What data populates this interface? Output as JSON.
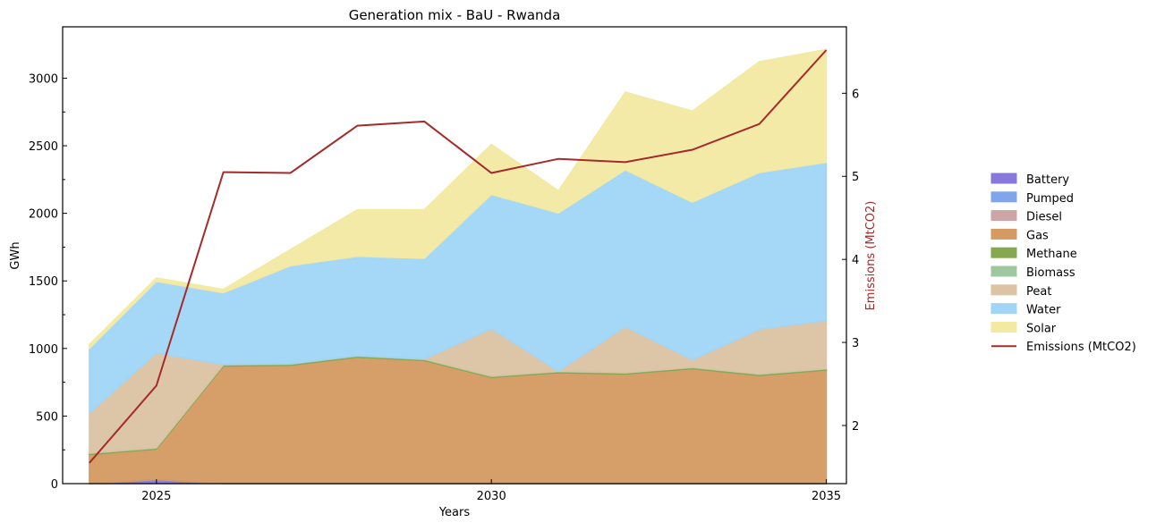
{
  "chart_data": {
    "type": "area",
    "title": "Generation mix - BaU - Rwanda",
    "xlabel": "Years",
    "ylabel": "GWh",
    "y2label": "Emissions (MtCO2)",
    "x": [
      2024,
      2025,
      2026,
      2027,
      2028,
      2029,
      2030,
      2031,
      2032,
      2033,
      2034,
      2035
    ],
    "xlim": [
      2023.6,
      2035.3
    ],
    "ylim": [
      0,
      3380
    ],
    "y2lim": [
      1.3,
      6.8
    ],
    "xticks": [
      2025,
      2030,
      2035
    ],
    "xtick_labels": [
      "2025",
      "2030",
      "2035"
    ],
    "yticks": [
      0,
      500,
      1000,
      1500,
      2000,
      2500,
      3000
    ],
    "ytick_labels": [
      "0",
      "500",
      "1000",
      "1500",
      "2000",
      "2500",
      "3000"
    ],
    "y2ticks": [
      2,
      3,
      4,
      5,
      6
    ],
    "y2tick_labels": [
      "2",
      "3",
      "4",
      "5",
      "6"
    ],
    "legend_position": "right",
    "stacked": true,
    "series": [
      {
        "name": "Battery",
        "color": "#8878dc",
        "values": [
          0,
          30,
          0,
          0,
          0,
          0,
          0,
          0,
          0,
          0,
          0,
          0
        ]
      },
      {
        "name": "Pumped",
        "color": "#7fa6ec",
        "values": [
          0,
          0,
          0,
          0,
          0,
          0,
          0,
          0,
          0,
          0,
          0,
          0
        ]
      },
      {
        "name": "Diesel",
        "color": "#cca6a6",
        "values": [
          0,
          0,
          0,
          0,
          0,
          0,
          0,
          0,
          0,
          0,
          0,
          0
        ]
      },
      {
        "name": "Gas",
        "color": "#d49a62",
        "values": [
          215,
          225,
          870,
          875,
          935,
          910,
          785,
          820,
          810,
          850,
          800,
          840
        ]
      },
      {
        "name": "Methane",
        "color": "#86a84f",
        "values": [
          8,
          8,
          8,
          8,
          8,
          8,
          8,
          8,
          8,
          8,
          8,
          8
        ]
      },
      {
        "name": "Biomass",
        "color": "#9fc79f",
        "values": [
          4,
          4,
          4,
          4,
          4,
          4,
          4,
          4,
          4,
          4,
          4,
          4
        ]
      },
      {
        "name": "Peat",
        "color": "#dbc3a3",
        "values": [
          295,
          700,
          0,
          0,
          0,
          0,
          350,
          0,
          340,
          55,
          330,
          355
        ]
      },
      {
        "name": "Water",
        "color": "#a0d5f6",
        "values": [
          478,
          530,
          530,
          725,
          735,
          745,
          993,
          1170,
          1160,
          1165,
          1160,
          1170
        ]
      },
      {
        "name": "Solar",
        "color": "#f2e9a2",
        "values": [
          30,
          25,
          25,
          120,
          345,
          360,
          370,
          165,
          575,
          675,
          820,
          835
        ]
      }
    ],
    "line": {
      "name": "Emissions (MtCO2)",
      "color": "#a52a2a",
      "values": [
        1.55,
        2.48,
        5.05,
        5.04,
        5.61,
        5.66,
        5.04,
        5.21,
        5.17,
        5.32,
        5.63,
        6.52
      ]
    }
  }
}
